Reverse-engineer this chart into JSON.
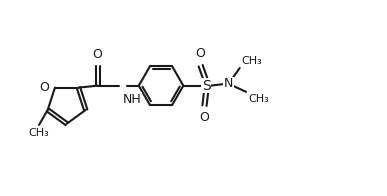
{
  "background": "#ffffff",
  "line_color": "#1a1a1a",
  "line_width": 1.5,
  "font_size": 9,
  "figsize": [
    3.87,
    1.96
  ],
  "dpi": 100,
  "xlim": [
    0,
    10
  ],
  "ylim": [
    0,
    5
  ]
}
